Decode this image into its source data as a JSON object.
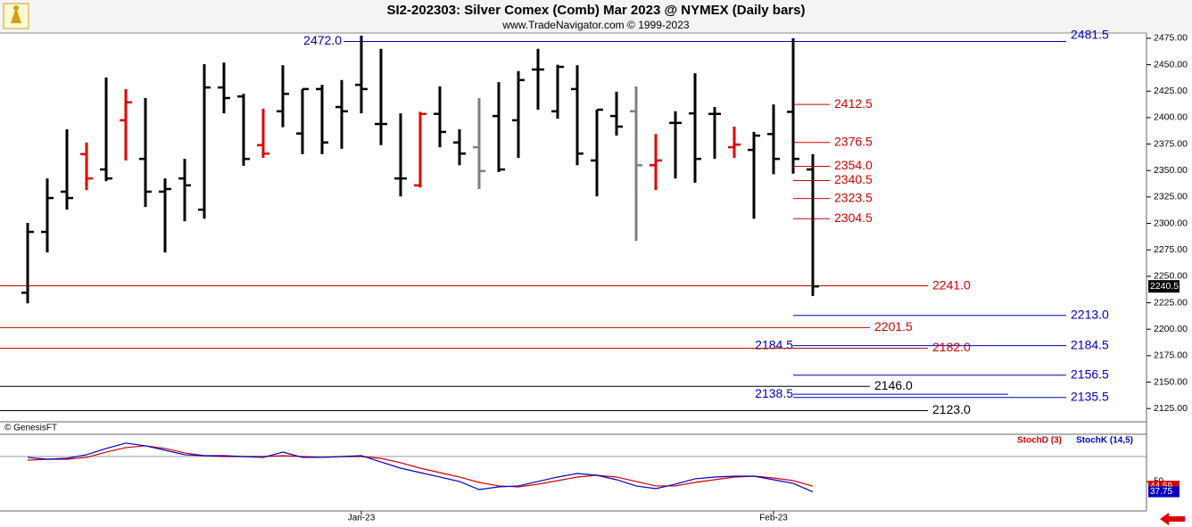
{
  "chart_data": [
    {
      "type": "ohlc",
      "title": "SI2-202303:  Silver Comex (Comb) Mar 2023 @ NYMEX  (Daily bars)",
      "subtitle": "www.TradeNavigator.com © 1999-2023",
      "source": "© GenesisFT",
      "categories": [
        null,
        null,
        null,
        null,
        null,
        null,
        null,
        null,
        null,
        null,
        null,
        null,
        null,
        null,
        null,
        null,
        null,
        null,
        null,
        null,
        null,
        null,
        null,
        null,
        null,
        null,
        null,
        null,
        null,
        null,
        null,
        null,
        null,
        null,
        null,
        null,
        null,
        null,
        null,
        null,
        null
      ],
      "xticks": [
        {
          "value": 17,
          "label": "Jan-23"
        },
        {
          "value": 38,
          "label": "Feb-23"
        }
      ],
      "open": [
        2234.5,
        2292,
        2330,
        2365.5,
        2351,
        2397.5,
        2361,
        2330,
        2342.5,
        2313,
        2428.5,
        2420,
        2374,
        2406,
        2385,
        2427,
        2410,
        2431,
        2394,
        2342.5,
        2336,
        2403.5,
        2376.5,
        2372,
        2401.5,
        2397.5,
        2445.5,
        2406,
        2427,
        2359.5,
        2401.5,
        2406,
        2355,
        2395,
        2404,
        2403.5,
        2372,
        2369.5,
        2384.5,
        2405.5,
        2351
      ],
      "high": [
        2300.5,
        2342.5,
        2389,
        2376.5,
        2438,
        2427,
        2418.5,
        2342.5,
        2361,
        2450.5,
        2452,
        2422.5,
        2408.5,
        2449.5,
        2427,
        2431,
        2435.5,
        2477.5,
        2465,
        2404,
        2405.5,
        2429.5,
        2389,
        2418.5,
        2433.5,
        2444,
        2465,
        2450,
        2449.5,
        2407.5,
        2424.5,
        2429.5,
        2384.5,
        2406,
        2442,
        2410,
        2391.5,
        2386.5,
        2412.5,
        2475,
        2365.5
      ],
      "low": [
        2224.5,
        2272.5,
        2313,
        2331.5,
        2340,
        2359.5,
        2315.5,
        2272.5,
        2302,
        2304.5,
        2404,
        2354.5,
        2362,
        2391,
        2365.5,
        2365.5,
        2370.5,
        2404,
        2374,
        2325.5,
        2334,
        2372,
        2355,
        2332.5,
        2348.5,
        2362,
        2407.5,
        2399,
        2355,
        2325.5,
        2383,
        2283.5,
        2331.5,
        2342.5,
        2338.5,
        2361,
        2362,
        2304.5,
        2346.5,
        2347,
        2231.5
      ],
      "close": [
        2292,
        2324,
        2324,
        2342.5,
        2342.5,
        2414.5,
        2330,
        2332.5,
        2336,
        2428.5,
        2418.5,
        2361,
        2366,
        2422.5,
        2427,
        2376.5,
        2406,
        2427,
        2394,
        2342.5,
        2403.5,
        2386.5,
        2366,
        2349.5,
        2351,
        2435.5,
        2445.5,
        2448,
        2366,
        2407.5,
        2391.5,
        2355,
        2359.5,
        2395,
        2361,
        2403.5,
        2374.5,
        2383,
        2361,
        2361,
        2240.5
      ],
      "colors": [
        "#000000",
        "#000000",
        "#000000",
        "#e00000",
        "#000000",
        "#e00000",
        "#000000",
        "#000000",
        "#000000",
        "#000000",
        "#000000",
        "#000000",
        "#e00000",
        "#000000",
        "#000000",
        "#000000",
        "#000000",
        "#000000",
        "#000000",
        "#000000",
        "#e00000",
        "#000000",
        "#000000",
        "#808080",
        "#000000",
        "#000000",
        "#000000",
        "#000000",
        "#000000",
        "#000000",
        "#000000",
        "#808080",
        "#e00000",
        "#000000",
        "#000000",
        "#000000",
        "#e00000",
        "#000000",
        "#000000",
        "#000000",
        "#000000"
      ],
      "last_price": 2240.5,
      "ylim": [
        2112.5,
        2480
      ],
      "yticks": [
        {
          "value": 2125,
          "label": "2125.00"
        },
        {
          "value": 2150,
          "label": "2150.00"
        },
        {
          "value": 2175,
          "label": "2175.00"
        },
        {
          "value": 2200,
          "label": "2200.00"
        },
        {
          "value": 2225,
          "label": "2225.00"
        },
        {
          "value": 2250,
          "label": "2250.00"
        },
        {
          "value": 2275,
          "label": "2275.00"
        },
        {
          "value": 2300,
          "label": "2300.00"
        },
        {
          "value": 2325,
          "label": "2325.00"
        },
        {
          "value": 2350,
          "label": "2350.00"
        },
        {
          "value": 2375,
          "label": "2375.00"
        },
        {
          "value": 2400,
          "label": "2400.00"
        },
        {
          "value": 2425,
          "label": "2425.00"
        },
        {
          "value": 2450,
          "label": "2450.00"
        },
        {
          "value": 2475,
          "label": "2475.00"
        }
      ],
      "levels": [
        {
          "value": 2481.5,
          "label": "2481.5",
          "color": "#0000c0"
        },
        {
          "value": 2472,
          "label": "2472.0",
          "color": "#0000c0"
        },
        {
          "value": 2412.5,
          "label": "2412.5",
          "color": "#d00000"
        },
        {
          "value": 2376.5,
          "label": "2376.5",
          "color": "#d00000"
        },
        {
          "value": 2354,
          "label": "2354.0",
          "color": "#d00000"
        },
        {
          "value": 2340.5,
          "label": "2340.5",
          "color": "#d00000"
        },
        {
          "value": 2323.5,
          "label": "2323.5",
          "color": "#d00000"
        },
        {
          "value": 2304.5,
          "label": "2304.5",
          "color": "#d00000"
        },
        {
          "value": 2241,
          "label": "2241.0",
          "color": "#d00000"
        },
        {
          "value": 2213,
          "label": "2213.0",
          "color": "#0000c0"
        },
        {
          "value": 2201.5,
          "label": "2201.5",
          "color": "#d00000"
        },
        {
          "value": 2184.5,
          "label": "2184.5",
          "color": "#0000c0"
        },
        {
          "value": 2184.5,
          "label": "2184.5",
          "color": "#0000c0"
        },
        {
          "value": 2182,
          "label": "2182.0",
          "color": "#d00000"
        },
        {
          "value": 2156.5,
          "label": "2156.5",
          "color": "#0000c0"
        },
        {
          "value": 2146,
          "label": "2146.0",
          "color": "#000000"
        },
        {
          "value": 2138.5,
          "label": "2138.5",
          "color": "#0000c0"
        },
        {
          "value": 2135.5,
          "label": "2135.5",
          "color": "#0000c0"
        },
        {
          "value": 2123,
          "label": "2123.0",
          "color": "#000000"
        }
      ]
    },
    {
      "type": "line",
      "ylim": [
        15,
        100
      ],
      "yticks": [
        50
      ],
      "reference": 80,
      "series": [
        {
          "name": "StochD (3)",
          "color": "#d00000",
          "values": [
            75.6,
            76.6,
            76.6,
            78.8,
            85.1,
            90.5,
            92.6,
            89.4,
            84.1,
            80.9,
            79.8,
            79.8,
            79.8,
            80.9,
            79.8,
            78.8,
            79.8,
            79.8,
            77.7,
            72.4,
            66,
            60.7,
            55.4,
            49,
            44.8,
            43.7,
            46.9,
            51.1,
            55.4,
            57.5,
            55.4,
            50.1,
            44.8,
            44.8,
            49,
            52.2,
            55.4,
            56.4,
            54.3,
            51.1,
            44.59
          ]
        },
        {
          "name": "StochK (14,5)",
          "color": "#0000c0",
          "values": [
            78.8,
            76.6,
            77.7,
            82,
            89.4,
            95.8,
            92.6,
            87.3,
            82,
            80.9,
            80.9,
            79.8,
            78.8,
            85.1,
            78.8,
            78.8,
            79.8,
            80.9,
            73.4,
            66,
            60.7,
            55.4,
            50.1,
            40.5,
            43.7,
            44.8,
            50.1,
            55.4,
            59.6,
            57.5,
            52.2,
            44.8,
            41.6,
            46.9,
            53.3,
            55.4,
            56.4,
            56.4,
            52.2,
            47.9,
            37.75
          ]
        }
      ]
    }
  ]
}
